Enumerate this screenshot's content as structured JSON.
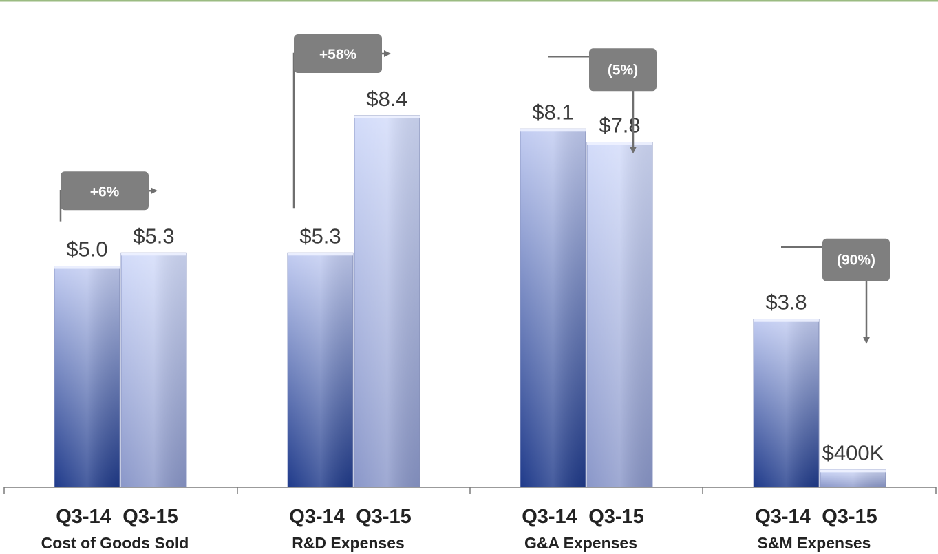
{
  "colors": {
    "top_rule": "#9bbb82",
    "callout_box": "#7f7f7f",
    "bar_q3_14_top": "#c3cdf2",
    "bar_q3_14_bottom": "#1f3a8a",
    "bar_q3_15_top": "#d3dcfa",
    "bar_q3_15_bottom": "#8a97c9"
  },
  "chart_data": {
    "type": "bar",
    "units": "$M",
    "series_labels": [
      "Q3-14",
      "Q3-15"
    ],
    "groups": [
      {
        "name": "Cost of Goods Sold",
        "values": [
          5.0,
          5.3
        ],
        "labels": [
          "$5.0",
          "$5.3"
        ],
        "change": "+6%",
        "direction": "up"
      },
      {
        "name": "R&D Expenses",
        "values": [
          5.3,
          8.4
        ],
        "labels": [
          "$5.3",
          "$8.4"
        ],
        "change": "+58%",
        "direction": "up"
      },
      {
        "name": "G&A Expenses",
        "values": [
          8.1,
          7.8
        ],
        "labels": [
          "$8.1",
          "$7.8"
        ],
        "change": "(5%)",
        "direction": "down"
      },
      {
        "name": "S&M Expenses",
        "values": [
          3.8,
          0.4
        ],
        "labels": [
          "$3.8",
          "$400K"
        ],
        "change": "(90%)",
        "direction": "down"
      }
    ],
    "ylim": [
      0,
      8.4
    ],
    "grid": false,
    "legend": "none"
  }
}
